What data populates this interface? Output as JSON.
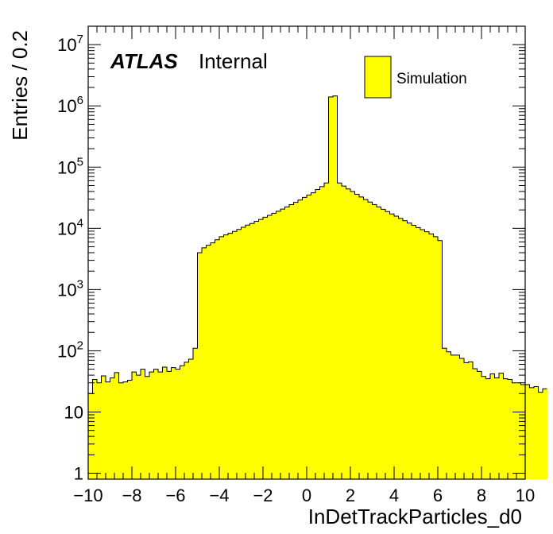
{
  "chart_data": {
    "type": "bar",
    "histogram_style": "step-filled",
    "fill_color": "#ffff00",
    "line_color": "#000000",
    "xlabel": "InDetTrackParticles_d0",
    "ylabel": "Entries / 0.2",
    "xlim": [
      -10,
      10
    ],
    "ylim": [
      0.8,
      20000000
    ],
    "yscale": "log",
    "bin_width": 0.2,
    "x_tick_labels": [
      "−10",
      "−8",
      "−6",
      "−4",
      "−2",
      "0",
      "2",
      "4",
      "6",
      "8",
      "10"
    ],
    "x_ticks": [
      -10,
      -8,
      -6,
      -4,
      -2,
      0,
      2,
      4,
      6,
      8,
      10
    ],
    "y_ticks": [
      1,
      10,
      100,
      1000,
      10000,
      100000,
      1000000,
      10000000
    ],
    "y_tick_labels": [
      {
        "base": "1",
        "exp": ""
      },
      {
        "base": "10",
        "exp": ""
      },
      {
        "base": "10",
        "exp": "2"
      },
      {
        "base": "10",
        "exp": "3"
      },
      {
        "base": "10",
        "exp": "4"
      },
      {
        "base": "10",
        "exp": "5"
      },
      {
        "base": "10",
        "exp": "6"
      },
      {
        "base": "10",
        "exp": "7"
      }
    ],
    "label_atlas": "ATLAS",
    "label_status": "Internal",
    "legend": [
      {
        "name": "Simulation",
        "color": "#ffff00"
      }
    ],
    "legend_position": "top-right",
    "series": [
      {
        "name": "Simulation",
        "values": [
          20,
          34,
          30,
          39,
          31,
          36,
          44,
          30,
          31,
          33,
          45,
          40,
          50,
          38,
          45,
          50,
          45,
          54,
          46,
          53,
          50,
          57,
          65,
          73,
          110,
          4000,
          4800,
          5300,
          5800,
          6500,
          7300,
          7800,
          8300,
          8900,
          9600,
          10400,
          11300,
          12000,
          13000,
          14000,
          15200,
          16300,
          17600,
          19000,
          20600,
          22400,
          24400,
          26600,
          29000,
          32000,
          35000,
          38000,
          43000,
          48000,
          55000,
          1400000,
          1450000,
          55000,
          49000,
          44000,
          40000,
          36000,
          32500,
          29500,
          26900,
          24500,
          22400,
          20500,
          18800,
          17200,
          15800,
          14500,
          13300,
          12200,
          11200,
          10300,
          9500,
          8800,
          8100,
          7300,
          6300,
          110,
          96,
          85,
          85,
          75,
          64,
          66,
          51,
          46,
          38,
          35,
          42,
          36,
          43,
          35,
          34,
          30,
          30,
          28,
          28,
          25,
          26,
          21,
          24
        ]
      }
    ]
  }
}
